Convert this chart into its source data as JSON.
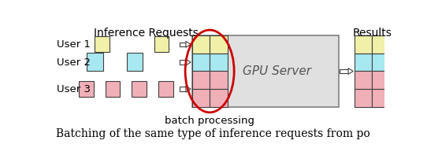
{
  "title": "Inference Requests",
  "results_label": "Results",
  "gpu_label": "GPU Server",
  "batch_label": "batch processing",
  "caption": "Batching of the same type of inference requests from po",
  "user_labels": [
    "User 1",
    "User 2",
    "User 3"
  ],
  "color_yellow": "#f0f0a8",
  "color_cyan": "#a8e8f0",
  "color_pink": "#f0b0b8",
  "bg_color": "#e0e0e0",
  "oval_color": "#cc0000",
  "figsize": [
    5.42,
    2.02
  ],
  "dpi": 100
}
